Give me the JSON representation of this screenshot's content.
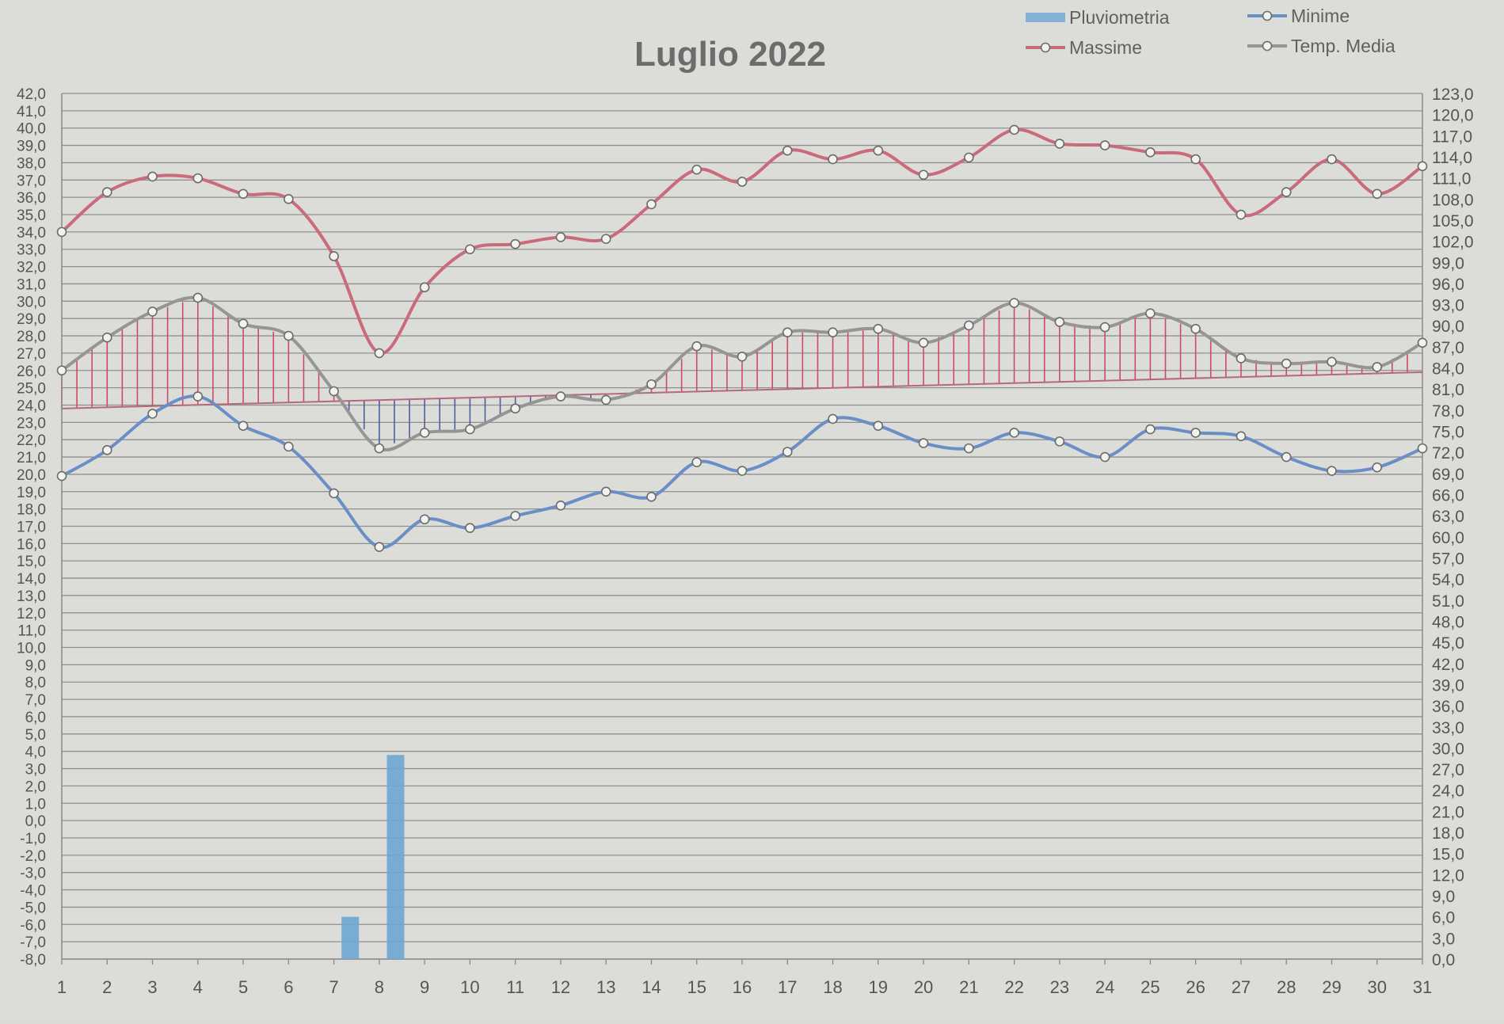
{
  "chart_data": {
    "type": "line",
    "title": "Luglio 2022",
    "categories": [
      "1",
      "2",
      "3",
      "4",
      "5",
      "6",
      "7",
      "8",
      "9",
      "10",
      "11",
      "12",
      "13",
      "14",
      "15",
      "16",
      "17",
      "18",
      "19",
      "20",
      "21",
      "22",
      "23",
      "24",
      "25",
      "26",
      "27",
      "28",
      "29",
      "30",
      "31"
    ],
    "y_left": {
      "ylim": [
        -8,
        42
      ],
      "step": 1,
      "tick_labels": [
        "42,0",
        "41,0",
        "40,0",
        "39,0",
        "38,0",
        "37,0",
        "36,0",
        "35,0",
        "34,0",
        "33,0",
        "32,0",
        "31,0",
        "30,0",
        "29,0",
        "28,0",
        "27,0",
        "26,0",
        "25,0",
        "24,0",
        "23,0",
        "22,0",
        "21,0",
        "20,0",
        "19,0",
        "18,0",
        "17,0",
        "16,0",
        "15,0",
        "14,0",
        "13,0",
        "12,0",
        "11,0",
        "10,0",
        "9,0",
        "8,0",
        "7,0",
        "6,0",
        "5,0",
        "4,0",
        "3,0",
        "2,0",
        "1,0",
        "0,0",
        "-1,0",
        "-2,0",
        "-3,0",
        "-4,0",
        "-5,0",
        "-6,0",
        "-7,0",
        "-8,0"
      ]
    },
    "y_right": {
      "ylim": [
        0,
        123
      ],
      "step": 3,
      "tick_labels": [
        "123,0",
        "120,0",
        "117,0",
        "114,0",
        "111,0",
        "108,0",
        "105,0",
        "102,0",
        "99,0",
        "96,0",
        "93,0",
        "90,0",
        "87,0",
        "84,0",
        "81,0",
        "78,0",
        "75,0",
        "72,0",
        "69,0",
        "66,0",
        "63,0",
        "60,0",
        "57,0",
        "54,0",
        "51,0",
        "48,0",
        "45,0",
        "42,0",
        "39,0",
        "36,0",
        "33,0",
        "30,0",
        "27,0",
        "24,0",
        "21,0",
        "18,0",
        "15,0",
        "12,0",
        "9,0",
        "6,0",
        "3,0",
        "0,0"
      ]
    },
    "series": [
      {
        "name": "Pluviometria",
        "kind": "bar",
        "axis": "right",
        "color": "#6ea6d2",
        "values": [
          0,
          0,
          0,
          0,
          0,
          0,
          6,
          29,
          0,
          0,
          0,
          0,
          0,
          0,
          0,
          0,
          0,
          0,
          0,
          0,
          0,
          0,
          0,
          0,
          0,
          0,
          0,
          0,
          0,
          0,
          0
        ]
      },
      {
        "name": "Massime",
        "kind": "line",
        "axis": "left",
        "color": "#c96b7b",
        "values": [
          34.0,
          36.3,
          37.2,
          37.1,
          36.2,
          35.9,
          32.6,
          27.0,
          30.8,
          33.0,
          33.3,
          33.7,
          33.6,
          35.6,
          37.6,
          36.9,
          38.7,
          38.2,
          38.7,
          37.3,
          38.3,
          39.9,
          39.1,
          39.0,
          38.6,
          38.2,
          35.0,
          36.3,
          38.2,
          36.2,
          37.8
        ]
      },
      {
        "name": "Minime",
        "kind": "line",
        "axis": "left",
        "color": "#6a8fc6",
        "values": [
          19.9,
          21.4,
          23.5,
          24.5,
          22.8,
          21.6,
          18.9,
          15.8,
          17.4,
          16.9,
          17.6,
          18.2,
          19.0,
          18.7,
          20.7,
          20.2,
          21.3,
          23.2,
          22.8,
          21.8,
          21.5,
          22.4,
          21.9,
          21.0,
          22.6,
          22.4,
          22.2,
          21.0,
          20.2,
          20.4,
          21.5
        ]
      },
      {
        "name": "Temp. Media",
        "kind": "line",
        "axis": "left",
        "color": "#959595",
        "values": [
          26.0,
          27.9,
          29.4,
          30.2,
          28.7,
          28.0,
          24.8,
          21.5,
          22.4,
          22.6,
          23.8,
          24.5,
          24.3,
          25.2,
          27.4,
          26.8,
          28.2,
          28.2,
          28.4,
          27.6,
          28.6,
          29.9,
          28.8,
          28.5,
          29.3,
          28.4,
          26.7,
          26.4,
          26.5,
          26.2,
          27.6
        ]
      }
    ],
    "reference_line": {
      "from": 23.8,
      "to": 25.9,
      "color": "#b46a78"
    },
    "legend": {
      "position": "top-right",
      "entries": [
        "Pluviometria",
        "Minime",
        "Massime",
        "Temp. Media"
      ]
    },
    "grid": true
  }
}
